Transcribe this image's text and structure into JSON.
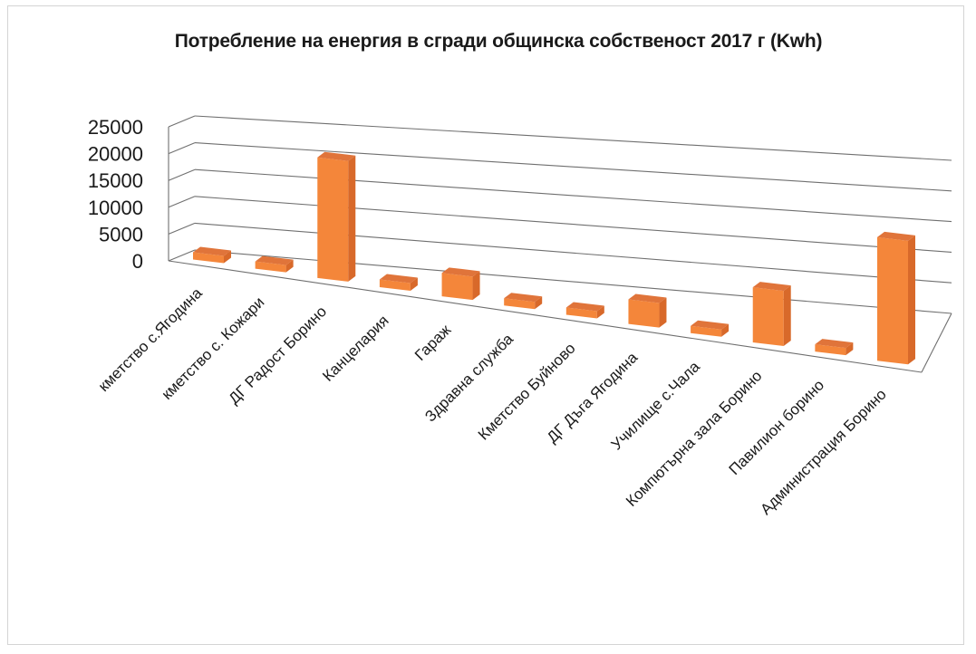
{
  "chart_data": {
    "type": "bar",
    "title": "Потребление на енергия в сгради общинска собственост 2017 г (Kwh)",
    "categories": [
      "кметство с.Ягодина",
      "кметство с. Кожари",
      "ДГ Радост Борино",
      "Канцелария",
      "Гараж",
      "Здравна служба",
      "Кметство Буйново",
      "ДГ Дъга Ягодина",
      "Училище с.Чала",
      "Компютърна зала Борино",
      "Павилион борино",
      "Администрация Борино"
    ],
    "values": [
      1100,
      500,
      22000,
      1400,
      4200,
      300,
      800,
      4300,
      1000,
      9500,
      600,
      21000
    ],
    "yticks": [
      "0",
      "5000",
      "10000",
      "15000",
      "20000",
      "25000"
    ],
    "ylim": [
      0,
      25000
    ],
    "grid": true,
    "colors": {
      "bar_front": "#f4863a",
      "bar_side": "#d8692a",
      "bar_top": "#e0743a",
      "grid": "#6f6f6f"
    }
  }
}
